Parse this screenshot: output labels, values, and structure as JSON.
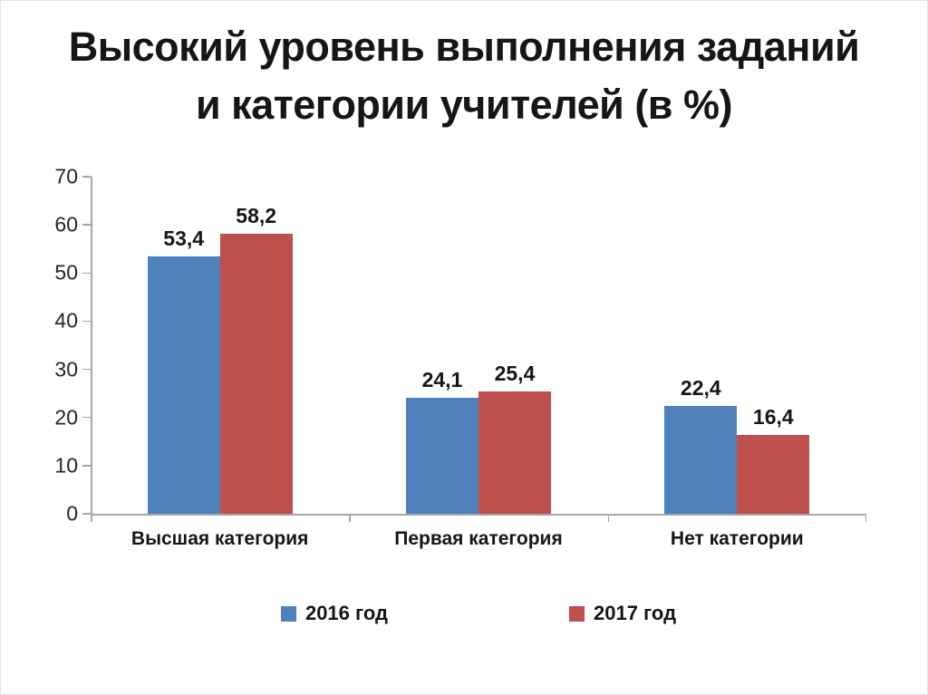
{
  "title": {
    "line1": "Высокий уровень выполнения заданий",
    "line2": "и категории учителей (в %)"
  },
  "chart_data": {
    "type": "bar",
    "title": "Высокий уровень выполнения заданий и категории учителей (в %)",
    "categories": [
      "Высшая категория",
      "Первая категория",
      "Нет категории"
    ],
    "series": [
      {
        "name": "2016 год",
        "color": "#4F81BD",
        "values": [
          53.4,
          24.1,
          22.4
        ],
        "labels": [
          "53,4",
          "24,1",
          "22,4"
        ]
      },
      {
        "name": "2017 год",
        "color": "#C0504D",
        "values": [
          58.2,
          25.4,
          16.4
        ],
        "labels": [
          "58,2",
          "25,4",
          "16,4"
        ]
      }
    ],
    "ylim": [
      0,
      70
    ],
    "yticks": [
      0,
      10,
      20,
      30,
      40,
      50,
      60,
      70
    ],
    "grid": false,
    "legend_position": "bottom",
    "axis_color": "#A6A6A6",
    "text_color": "#161616"
  }
}
